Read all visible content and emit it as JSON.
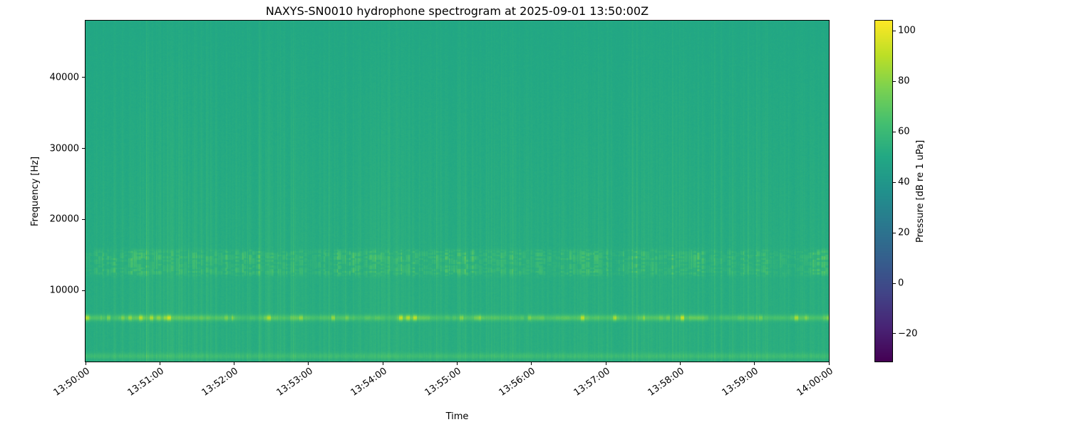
{
  "chart_data": {
    "type": "heatmap",
    "subtype": "spectrogram",
    "title": "NAXYS-SN0010 hydrophone spectrogram at 2025-09-01 13:50:00Z",
    "xlabel": "Time",
    "ylabel": "Frequency [Hz]",
    "colorbar_label": "Pressure [dB re 1 uPa]",
    "colormap": "viridis",
    "x_tick_labels": [
      "13:50:00",
      "13:51:00",
      "13:52:00",
      "13:53:00",
      "13:54:00",
      "13:55:00",
      "13:56:00",
      "13:57:00",
      "13:58:00",
      "13:59:00",
      "14:00:00"
    ],
    "duration_s": 600,
    "y_range_hz": [
      0,
      48000
    ],
    "y_ticks": [
      {
        "value": 10000,
        "label": "10000"
      },
      {
        "value": 20000,
        "label": "20000"
      },
      {
        "value": 30000,
        "label": "30000"
      },
      {
        "value": 40000,
        "label": "40000"
      }
    ],
    "clim_db": [
      -31,
      104
    ],
    "colorbar_ticks": [
      {
        "value": 100,
        "label": "100"
      },
      {
        "value": 80,
        "label": "80"
      },
      {
        "value": 60,
        "label": "60"
      },
      {
        "value": 40,
        "label": "40"
      },
      {
        "value": 20,
        "label": "20"
      },
      {
        "value": 0,
        "label": "0"
      },
      {
        "value": -20,
        "label": "−20"
      }
    ],
    "features": [
      {
        "kind": "background-noise-floor",
        "level_db": "50-55",
        "pattern": "uniform teal-green field over all frequencies"
      },
      {
        "kind": "tonal-band",
        "center_hz": 6150,
        "bandwidth_hz": 600,
        "level_db": "65-95",
        "pattern": "continuous bright line with yellow transient blobs"
      },
      {
        "kind": "band-cluster",
        "range_hz": [
          12000,
          15800
        ],
        "level_db": "58-75",
        "pattern": "dense intermittent dashes in two stripe groups"
      },
      {
        "kind": "broadband-transients",
        "range_hz": [
          1000,
          46000
        ],
        "level_db": "+2-8 above floor",
        "pattern": "narrow vertical streaks throughout the record, fading above 30 kHz"
      },
      {
        "kind": "low-frequency-band",
        "range_hz": [
          300,
          1200
        ],
        "level_db": "58-64",
        "pattern": "thin continuous bright band near bottom edge"
      }
    ],
    "render": {
      "viridis": [
        "#440154",
        "#482475",
        "#414487",
        "#355f8d",
        "#2a788e",
        "#21918c",
        "#22a884",
        "#44bf70",
        "#7ad151",
        "#bddf26",
        "#fde725"
      ],
      "base_db": 52.5,
      "base_slope_db": -3.0,
      "noise_db": 2.4,
      "streaks": {
        "prob": 0.42,
        "max_db": 4.2,
        "strong_prob": 0.06,
        "strong_db": 5
      },
      "tonal6k": {
        "center_hz": 6150,
        "sigma_hz": 290,
        "base_db": 13,
        "var_db": 7,
        "spike_db": 24,
        "spike_prob": 0.22
      },
      "bands12k": [
        [
          12650,
          420,
          0.85
        ],
        [
          13600,
          380,
          0.6
        ],
        [
          14600,
          430,
          0.95
        ],
        [
          15400,
          300,
          0.6
        ]
      ],
      "low_band": {
        "center_hz": 750,
        "sigma_hz": 320,
        "base_db": 5.5,
        "var_db": 4
      }
    }
  }
}
